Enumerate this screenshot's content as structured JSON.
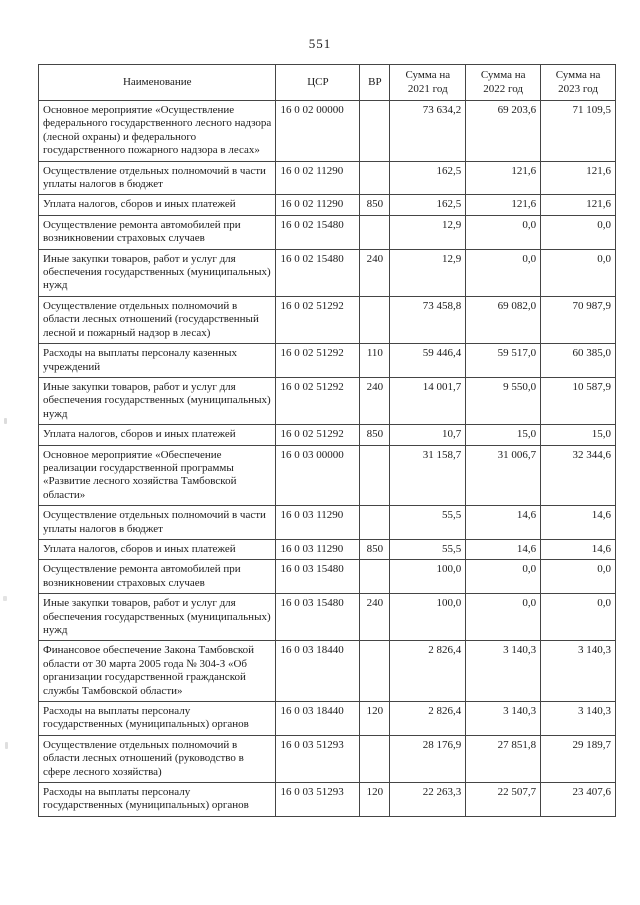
{
  "page": {
    "number": "551"
  },
  "table": {
    "headers": [
      "Наименование",
      "ЦСР",
      "ВР",
      "Сумма на 2021 год",
      "Сумма на 2022 год",
      "Сумма на 2023 год"
    ],
    "rows": [
      {
        "name": "Основное мероприятие «Осуществление федерального государственного лесного надзора (лесной охраны) и федерального государственного пожарного надзора в лесах»",
        "csr": "16 0 02 00000",
        "vr": "",
        "y2021": "73 634,2",
        "y2022": "69 203,6",
        "y2023": "71 109,5"
      },
      {
        "name": "Осуществление отдельных полномочий в части уплаты налогов в бюджет",
        "csr": "16 0 02 11290",
        "vr": "",
        "y2021": "162,5",
        "y2022": "121,6",
        "y2023": "121,6"
      },
      {
        "name": "Уплата налогов, сборов и иных платежей",
        "csr": "16 0 02 11290",
        "vr": "850",
        "y2021": "162,5",
        "y2022": "121,6",
        "y2023": "121,6"
      },
      {
        "name": "Осуществление ремонта автомобилей при возникновении страховых случаев",
        "csr": "16 0 02 15480",
        "vr": "",
        "y2021": "12,9",
        "y2022": "0,0",
        "y2023": "0,0"
      },
      {
        "name": "Иные закупки товаров, работ и услуг для обеспечения государственных (муниципальных) нужд",
        "csr": "16 0 02 15480",
        "vr": "240",
        "y2021": "12,9",
        "y2022": "0,0",
        "y2023": "0,0"
      },
      {
        "name": "Осуществление отдельных полномочий в области лесных отношений (государственный лесной и пожарный надзор в лесах)",
        "csr": "16 0 02 51292",
        "vr": "",
        "y2021": "73 458,8",
        "y2022": "69 082,0",
        "y2023": "70 987,9"
      },
      {
        "name": "Расходы на выплаты персоналу казенных учреждений",
        "csr": "16 0 02 51292",
        "vr": "110",
        "y2021": "59 446,4",
        "y2022": "59 517,0",
        "y2023": "60 385,0"
      },
      {
        "name": "Иные закупки товаров, работ и услуг для обеспечения государственных (муниципальных) нужд",
        "csr": "16 0 02 51292",
        "vr": "240",
        "y2021": "14 001,7",
        "y2022": "9 550,0",
        "y2023": "10 587,9"
      },
      {
        "name": "Уплата налогов, сборов и иных платежей",
        "csr": "16 0 02 51292",
        "vr": "850",
        "y2021": "10,7",
        "y2022": "15,0",
        "y2023": "15,0"
      },
      {
        "name": "Основное мероприятие «Обеспечение реализации государственной программы «Развитие лесного хозяйства Тамбовской области»",
        "csr": "16 0 03 00000",
        "vr": "",
        "y2021": "31 158,7",
        "y2022": "31 006,7",
        "y2023": "32 344,6"
      },
      {
        "name": "Осуществление отдельных полномочий в части уплаты налогов в бюджет",
        "csr": "16 0 03 11290",
        "vr": "",
        "y2021": "55,5",
        "y2022": "14,6",
        "y2023": "14,6"
      },
      {
        "name": "Уплата налогов, сборов и иных платежей",
        "csr": "16 0 03 11290",
        "vr": "850",
        "y2021": "55,5",
        "y2022": "14,6",
        "y2023": "14,6"
      },
      {
        "name": "Осуществление ремонта автомобилей при возникновении страховых случаев",
        "csr": "16 0 03 15480",
        "vr": "",
        "y2021": "100,0",
        "y2022": "0,0",
        "y2023": "0,0"
      },
      {
        "name": "Иные закупки товаров, работ и услуг для обеспечения государственных (муниципальных) нужд",
        "csr": "16 0 03 15480",
        "vr": "240",
        "y2021": "100,0",
        "y2022": "0,0",
        "y2023": "0,0"
      },
      {
        "name": "Финансовое обеспечение Закона Тамбовской области от 30 марта 2005 года № 304-З «Об организации государственной гражданской службы Тамбовской области»",
        "csr": "16 0 03 18440",
        "vr": "",
        "y2021": "2 826,4",
        "y2022": "3 140,3",
        "y2023": "3 140,3"
      },
      {
        "name": "Расходы на выплаты персоналу государственных (муниципальных) органов",
        "csr": "16 0 03 18440",
        "vr": "120",
        "y2021": "2 826,4",
        "y2022": "3 140,3",
        "y2023": "3 140,3"
      },
      {
        "name": "Осуществление отдельных полномочий в области лесных отношений (руководство в сфере лесного хозяйства)",
        "csr": "16 0 03 51293",
        "vr": "",
        "y2021": "28 176,9",
        "y2022": "27 851,8",
        "y2023": "29 189,7"
      },
      {
        "name": "Расходы на выплаты персоналу государственных (муниципальных) органов",
        "csr": "16 0 03 51293",
        "vr": "120",
        "y2021": "22 263,3",
        "y2022": "22 507,7",
        "y2023": "23 407,6"
      }
    ]
  }
}
